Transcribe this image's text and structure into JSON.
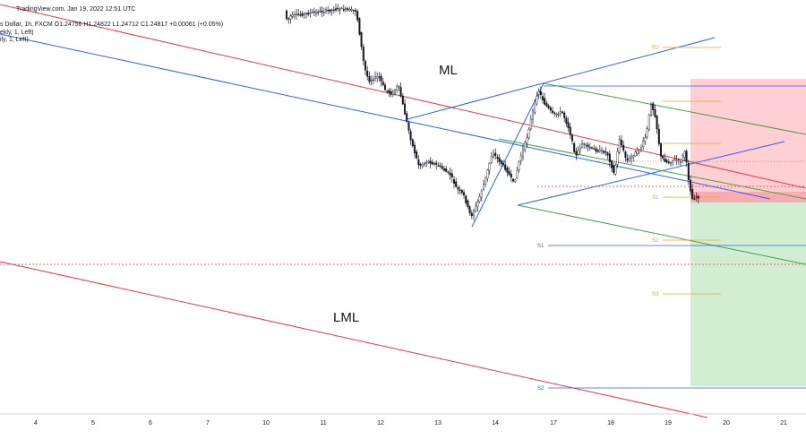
{
  "header": {
    "line1": "TradingView.com, Jan 19, 2022 12:51 UTC",
    "line2": "s Dollar, 1h, FXCM  O1.24756  H1.24822  L1.24712  C1.24817  +0.00061 (+0.05%)",
    "line3": "ekly, 1, Left)",
    "line4": "ily, 1, Left)"
  },
  "annotations": {
    "ml": "ML",
    "lml": "LML"
  },
  "levels": [
    {
      "name": "R2",
      "color": "#f0a030"
    },
    {
      "name": "S1",
      "color": "#f0a030"
    },
    {
      "name": "S1",
      "color": "#2962ff"
    },
    {
      "name": "S2",
      "color": "#f0a030"
    },
    {
      "name": "S3",
      "color": "#f0a030"
    },
    {
      "name": "S2",
      "color": "#2962ff"
    }
  ],
  "colors": {
    "red_line": "#f23645",
    "blue_line": "#2962ff",
    "green_line": "#43a047",
    "candle": "#131722",
    "stop_zone": "#ffc7cc",
    "target_zone": "#cdeccd"
  },
  "chart_data": {
    "type": "candlestick",
    "x_tick_labels": [
      "4",
      "5",
      "6",
      "7",
      "10",
      "11",
      "12",
      "13",
      "14",
      "17",
      "18",
      "19",
      "20",
      "21"
    ],
    "grid": false,
    "legend": "none"
  }
}
